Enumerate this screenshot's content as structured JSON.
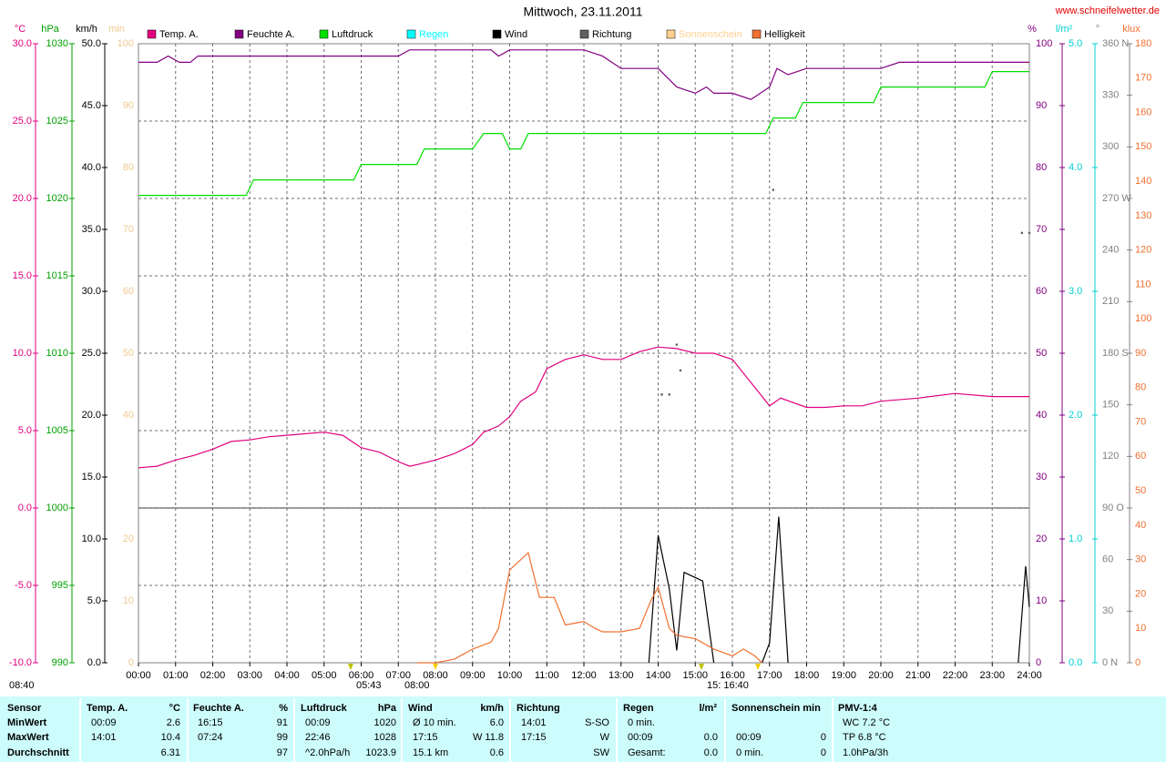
{
  "chart_data": {
    "type": "line",
    "title": "Mittwoch, 23.11.2011",
    "source": "www.schneifelwetter.de",
    "grid": true,
    "xlim": [
      0,
      24
    ],
    "xticks": [
      {
        "value": 0,
        "label": "00:00"
      },
      {
        "value": 1,
        "label": "01:00"
      },
      {
        "value": 2,
        "label": "02:00"
      },
      {
        "value": 3,
        "label": "03:00"
      },
      {
        "value": 4,
        "label": "04:00"
      },
      {
        "value": 5,
        "label": "05:00"
      },
      {
        "value": 6,
        "label": "06:00"
      },
      {
        "value": 7,
        "label": "07:00"
      },
      {
        "value": 8,
        "label": "08:00"
      },
      {
        "value": 9,
        "label": "09:00"
      },
      {
        "value": 10,
        "label": "10:00"
      },
      {
        "value": 11,
        "label": "11:00"
      },
      {
        "value": 12,
        "label": "12:00"
      },
      {
        "value": 13,
        "label": "13:00"
      },
      {
        "value": 14,
        "label": "14:00"
      },
      {
        "value": 15,
        "label": "15:00"
      },
      {
        "value": 16,
        "label": "16:00"
      },
      {
        "value": 17,
        "label": "17:00"
      },
      {
        "value": 18,
        "label": "18:00"
      },
      {
        "value": 19,
        "label": "19:00"
      },
      {
        "value": 20,
        "label": "20:00"
      },
      {
        "value": 21,
        "label": "21:00"
      },
      {
        "value": 22,
        "label": "22:00"
      },
      {
        "value": 23,
        "label": "23:00"
      },
      {
        "value": 24,
        "label": "24:00"
      }
    ],
    "axes": [
      {
        "unit": "°C",
        "color": "#e0007f",
        "ylim": [
          -10,
          30
        ],
        "yticks": [
          {
            "value": 30,
            "label": "30.0"
          },
          {
            "value": 25,
            "label": "25.0"
          },
          {
            "value": 20,
            "label": "20.0"
          },
          {
            "value": 15,
            "label": "15.0"
          },
          {
            "value": 10,
            "label": "10.0"
          },
          {
            "value": 5,
            "label": "5.0"
          },
          {
            "value": 0,
            "label": "0.0"
          },
          {
            "value": -5,
            "label": "-5.0"
          },
          {
            "value": -10,
            "label": "-10.0"
          }
        ]
      },
      {
        "unit": "hPa",
        "color": "#00a000",
        "ylim": [
          990,
          1030
        ],
        "yticks": [
          1030,
          1025,
          1020,
          1015,
          1010,
          1005,
          1000,
          995,
          990
        ]
      },
      {
        "unit": "km/h",
        "color": "#000000",
        "ylim": [
          0,
          50
        ],
        "yticks": [
          {
            "value": 50,
            "label": "50.0"
          },
          {
            "value": 45,
            "label": "45.0"
          },
          {
            "value": 40,
            "label": "40.0"
          },
          {
            "value": 35,
            "label": "35.0"
          },
          {
            "value": 30,
            "label": "30.0"
          },
          {
            "value": 25,
            "label": "25.0"
          },
          {
            "value": 20,
            "label": "20.0"
          },
          {
            "value": 15,
            "label": "15.0"
          },
          {
            "value": 10,
            "label": "10.0"
          },
          {
            "value": 5,
            "label": "5.0"
          },
          {
            "value": 0,
            "label": "0.0"
          }
        ]
      },
      {
        "unit": "min",
        "color": "#f0c890",
        "ylim": [
          0,
          100
        ],
        "yticks": [
          100,
          90,
          80,
          70,
          60,
          50,
          40,
          20,
          10,
          0
        ]
      },
      {
        "unit": "%",
        "color": "#800080",
        "ylim": [
          0,
          100
        ],
        "yticks": [
          100,
          90,
          80,
          70,
          60,
          50,
          40,
          30,
          20,
          10,
          0
        ]
      },
      {
        "unit": "l/m²",
        "color": "#00d0d0",
        "ylim": [
          0,
          5
        ],
        "yticks": [
          {
            "value": 5,
            "label": "5.0"
          },
          {
            "value": 4,
            "label": "4.0"
          },
          {
            "value": 3,
            "label": "3.0"
          },
          {
            "value": 2,
            "label": "2.0"
          },
          {
            "value": 1,
            "label": "1.0"
          },
          {
            "value": 0,
            "label": "0.0"
          }
        ]
      },
      {
        "unit": "°",
        "color": "#808080",
        "ylim": [
          0,
          360
        ],
        "yticks": [
          {
            "value": 360,
            "label": "360 N"
          },
          330,
          300,
          {
            "value": 270,
            "label": "270 W"
          },
          240,
          210,
          {
            "value": 180,
            "label": "180 S"
          },
          150,
          120,
          {
            "value": 90,
            "label": "90 O"
          },
          60,
          30,
          {
            "value": 0,
            "label": "0 N"
          }
        ]
      },
      {
        "unit": "klux",
        "color": "#f07030",
        "ylim": [
          0,
          180
        ],
        "yticks": [
          180,
          170,
          160,
          150,
          140,
          130,
          120,
          110,
          100,
          90,
          80,
          70,
          60,
          50,
          40,
          30,
          20,
          10,
          0
        ]
      }
    ],
    "series": [
      {
        "name": "Temp. A.",
        "color": "#e0007f",
        "axis": "°C",
        "x": [
          0,
          0.5,
          1,
          1.5,
          2,
          2.5,
          3,
          3.5,
          4,
          4.5,
          5,
          5.5,
          6,
          6.5,
          7,
          7.3,
          7.5,
          8,
          8.5,
          9,
          9.3,
          9.7,
          10,
          10.3,
          10.7,
          11,
          11.5,
          12,
          12.5,
          13,
          13.5,
          14,
          14.5,
          15,
          15.5,
          16,
          16.5,
          17,
          17.3,
          18,
          18.5,
          19,
          19.5,
          20,
          21,
          22,
          23,
          24
        ],
        "values": [
          2.6,
          2.7,
          3.1,
          3.4,
          3.8,
          4.3,
          4.4,
          4.6,
          4.7,
          4.8,
          4.9,
          4.7,
          3.9,
          3.6,
          3.0,
          2.7,
          2.8,
          3.1,
          3.5,
          4.1,
          4.9,
          5.3,
          5.9,
          6.9,
          7.5,
          9.0,
          9.6,
          9.9,
          9.6,
          9.6,
          10.1,
          10.4,
          10.3,
          10.0,
          10.0,
          9.6,
          8.1,
          6.6,
          7.1,
          6.5,
          6.5,
          6.6,
          6.6,
          6.9,
          7.1,
          7.4,
          7.2,
          7.2
        ]
      },
      {
        "name": "Feuchte A.",
        "color": "#800080",
        "axis": "%",
        "x": [
          0,
          0.5,
          0.8,
          1.1,
          1.4,
          1.6,
          7,
          7.3,
          9.5,
          9.7,
          10,
          12,
          12.5,
          13,
          14,
          14.5,
          15,
          15.3,
          15.5,
          16,
          16.5,
          17,
          17.2,
          17.5,
          18,
          20,
          20.5,
          24
        ],
        "values": [
          97,
          97,
          98,
          97,
          97,
          98,
          98,
          99,
          99,
          98,
          99,
          99,
          98,
          96,
          96,
          93,
          92,
          93,
          92,
          92,
          91,
          93,
          96,
          95,
          96,
          96,
          97,
          97
        ]
      },
      {
        "name": "Luftdruck",
        "color": "#00e000",
        "axis": "hPa",
        "x": [
          0,
          2.9,
          3.1,
          5.8,
          6,
          7.5,
          7.7,
          9,
          9.3,
          9.8,
          10,
          10.3,
          10.5,
          16.9,
          17.1,
          17.7,
          17.9,
          19.8,
          20,
          22.8,
          23,
          24
        ],
        "values": [
          1020.2,
          1020.2,
          1021.2,
          1021.2,
          1022.2,
          1022.2,
          1023.2,
          1023.2,
          1024.2,
          1024.2,
          1023.2,
          1023.2,
          1024.2,
          1024.2,
          1025.2,
          1025.2,
          1026.2,
          1026.2,
          1027.2,
          1027.2,
          1028.2,
          1028.2
        ]
      },
      {
        "name": "Regen",
        "color": "#00ffff",
        "axis": "l/m²"
      },
      {
        "name": "Wind",
        "color": "#000000",
        "axis": "km/h",
        "x": [
          13.75,
          14,
          14.3,
          14.5,
          14.7,
          15.2,
          15.5,
          15.6,
          16.8,
          17,
          17.25,
          17.5,
          17.6,
          23.7,
          23.9,
          24
        ],
        "values": [
          0,
          10.3,
          6,
          1.0,
          7.3,
          6.6,
          0,
          null,
          0,
          1.6,
          11.8,
          0,
          null,
          0,
          7.8,
          4.5
        ]
      },
      {
        "name": "Richtung",
        "color": "#606060",
        "axis": "°",
        "type": "scatter",
        "x": [
          14.1,
          14.3,
          14.5,
          14.6,
          17.1,
          23.8,
          24
        ],
        "values": [
          156,
          156,
          185,
          170,
          275,
          250,
          250
        ]
      },
      {
        "name": "Sonnenschein",
        "color": "#ffd090",
        "axis": "min"
      },
      {
        "name": "Helligkeit",
        "color": "#f07030",
        "axis": "klux",
        "x": [
          7.5,
          8,
          8.5,
          9,
          9.5,
          9.7,
          10,
          10.5,
          10.8,
          11.2,
          11.5,
          12,
          12.3,
          12.5,
          13,
          13.5,
          13.8,
          14,
          14.3,
          14.5,
          15,
          15.5,
          16,
          16.3,
          16.6,
          16.8
        ],
        "values": [
          0,
          0,
          1,
          4,
          6,
          10,
          27,
          32,
          19,
          19,
          11,
          12,
          10,
          9,
          9,
          10,
          18,
          22,
          10,
          8,
          7,
          4,
          2,
          4,
          2,
          0
        ]
      }
    ],
    "annotations": [
      "08:40",
      "05:43",
      "08:00",
      "15: 16:40"
    ]
  },
  "summary": {
    "columns": [
      {
        "header": "Sensor",
        "rows": [
          [
            "MinWert",
            null
          ],
          [
            "MaxWert",
            null
          ],
          [
            "Durchschnitt",
            null
          ]
        ]
      },
      {
        "header": "Temp. A.",
        "unit": "°C",
        "rows": [
          [
            "00:09",
            "2.6"
          ],
          [
            "14:01",
            "10.4"
          ],
          [
            null,
            "6.31"
          ]
        ]
      },
      {
        "header": "Feuchte A.",
        "unit": "%",
        "rows": [
          [
            "16:15",
            "91"
          ],
          [
            "07:24",
            "99"
          ],
          [
            null,
            "97"
          ]
        ]
      },
      {
        "header": "Luftdruck",
        "unit": "hPa",
        "rows": [
          [
            "00:09",
            "1020"
          ],
          [
            "22:46",
            "1028"
          ],
          [
            "^2.0hPa/h",
            "1023.9"
          ]
        ]
      },
      {
        "header": "Wind",
        "unit": "km/h",
        "rows": [
          [
            "Ø 10 min.",
            "6.0"
          ],
          [
            "17:15",
            "W 11.8"
          ],
          [
            "15.1 km",
            "0.6"
          ]
        ]
      },
      {
        "header": "Richtung",
        "rows": [
          [
            "14:01",
            "S-SO"
          ],
          [
            "17:15",
            "W"
          ],
          [
            null,
            "SW"
          ]
        ]
      },
      {
        "header": "Regen",
        "unit": "l/m²",
        "rows": [
          [
            "0 min.",
            null
          ],
          [
            "00:09",
            "0.0"
          ],
          [
            "Gesamt:",
            "0.0"
          ]
        ]
      },
      {
        "header": "Sonnenschein min",
        "rows": [
          [
            null,
            null
          ],
          [
            "00:09",
            "0"
          ],
          [
            "0 min.",
            "0"
          ]
        ]
      },
      {
        "header": "PMV-1:4",
        "rows": [
          [
            "WC 7.2 °C",
            null
          ],
          [
            "TP 6.8 °C",
            null
          ],
          [
            "1.0hPa/3h",
            null
          ]
        ]
      }
    ]
  }
}
